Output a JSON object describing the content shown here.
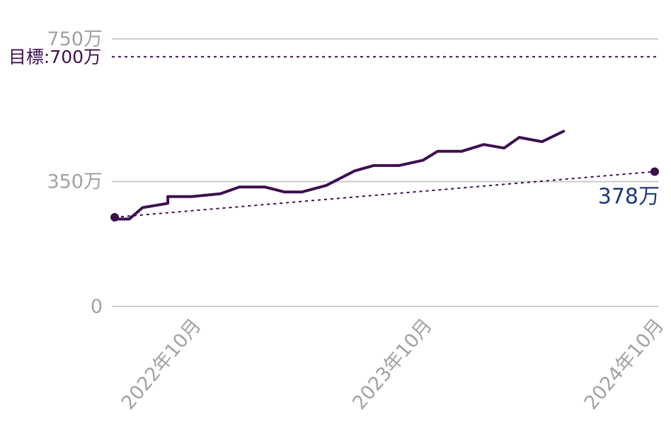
{
  "chart_data": {
    "type": "line",
    "title": "",
    "xlabel": "",
    "ylabel": "",
    "ylim": [
      0,
      750
    ],
    "y_ticks": [
      {
        "value": 0,
        "label": "0"
      },
      {
        "value": 350,
        "label": "350万"
      },
      {
        "value": 750,
        "label": "750万"
      }
    ],
    "x_range": [
      "2022-06",
      "2024-10"
    ],
    "x_ticks": [
      {
        "x": "2022-10",
        "label": "2022年10月"
      },
      {
        "x": "2023-10",
        "label": "2023年10月"
      },
      {
        "x": "2024-10",
        "label": "2024年10月"
      }
    ],
    "target": {
      "value": 700,
      "label": "目標:700万"
    },
    "series": [
      {
        "type": "line",
        "points": [
          [
            "2022-06-01",
            245
          ],
          [
            "2022-06-24",
            245
          ],
          [
            "2022-07-15",
            277
          ],
          [
            "2022-08-24",
            289
          ],
          [
            "2022-08-24",
            308
          ],
          [
            "2022-10-01",
            308
          ],
          [
            "2022-11-15",
            316
          ],
          [
            "2022-12-15",
            335
          ],
          [
            "2023-01-24",
            335
          ],
          [
            "2023-02-24",
            321
          ],
          [
            "2023-03-24",
            321
          ],
          [
            "2023-05-01",
            339
          ],
          [
            "2023-06-15",
            380
          ],
          [
            "2023-07-15",
            395
          ],
          [
            "2023-08-24",
            395
          ],
          [
            "2023-10-01",
            410
          ],
          [
            "2023-10-24",
            435
          ],
          [
            "2023-12-01",
            435
          ],
          [
            "2024-01-05",
            454
          ],
          [
            "2024-02-06",
            444
          ],
          [
            "2024-03-01",
            474
          ],
          [
            "2024-04-06",
            462
          ],
          [
            "2024-05-10",
            491
          ]
        ]
      },
      {
        "type": "dotted",
        "points": [
          [
            "2022-06-01",
            250
          ],
          [
            "2024-10-01",
            378
          ]
        ]
      }
    ],
    "end_label": "378万",
    "grid": true
  }
}
